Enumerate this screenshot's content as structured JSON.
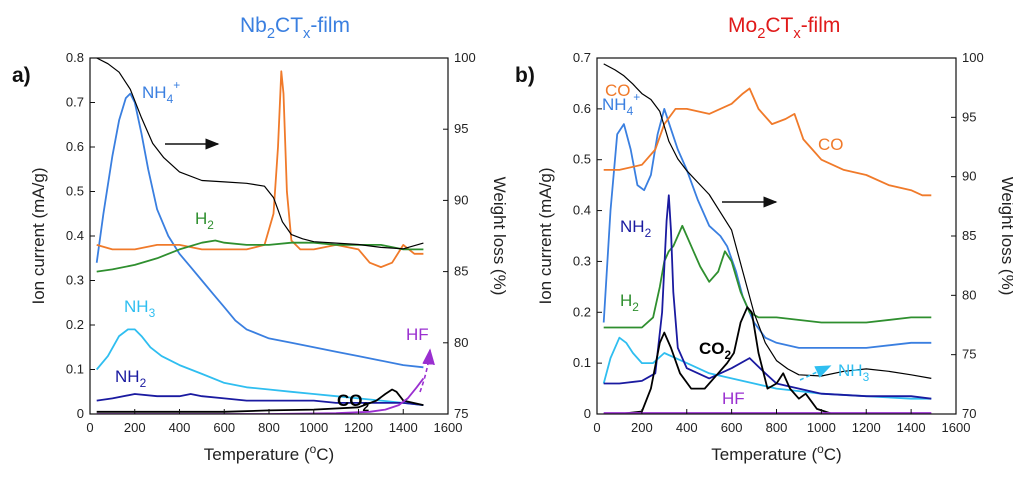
{
  "chart_data": [
    {
      "type": "line",
      "panel_label": "a)",
      "title": "Nb2CTx-film",
      "title_color": "#3a7fe0",
      "xlabel": "Temperature (oC)",
      "ylabel": "Ion current (mA/g)",
      "y2label": "Weight loss (%)",
      "xlim": [
        0,
        1600
      ],
      "ylim": [
        0,
        0.8
      ],
      "y2lim": [
        75,
        100
      ],
      "xticks": [
        0,
        200,
        400,
        600,
        800,
        1000,
        1200,
        1400,
        1600
      ],
      "yticks": [
        0,
        0.1,
        0.2,
        0.3,
        0.4,
        0.5,
        0.6,
        0.7,
        0.8
      ],
      "y2ticks": [
        75,
        80,
        85,
        90,
        95,
        100
      ],
      "series": [
        {
          "name": "NH4+",
          "color": "#3a7fe0",
          "axis": "left",
          "x": [
            30,
            60,
            100,
            130,
            160,
            180,
            200,
            230,
            260,
            300,
            350,
            400,
            450,
            500,
            550,
            600,
            650,
            700,
            800,
            900,
            1000,
            1100,
            1200,
            1300,
            1400,
            1490
          ],
          "y": [
            0.34,
            0.45,
            0.58,
            0.66,
            0.71,
            0.72,
            0.7,
            0.63,
            0.55,
            0.46,
            0.4,
            0.36,
            0.33,
            0.3,
            0.27,
            0.24,
            0.21,
            0.19,
            0.17,
            0.16,
            0.15,
            0.14,
            0.13,
            0.12,
            0.11,
            0.105
          ]
        },
        {
          "name": "CO",
          "color": "#f07a2a",
          "axis": "left",
          "x": [
            30,
            100,
            200,
            300,
            400,
            500,
            600,
            700,
            780,
            820,
            840,
            855,
            865,
            880,
            900,
            940,
            1000,
            1100,
            1200,
            1250,
            1300,
            1350,
            1400,
            1450,
            1490
          ],
          "y": [
            0.38,
            0.37,
            0.37,
            0.38,
            0.38,
            0.37,
            0.37,
            0.37,
            0.38,
            0.45,
            0.6,
            0.77,
            0.72,
            0.5,
            0.39,
            0.37,
            0.37,
            0.38,
            0.37,
            0.34,
            0.33,
            0.34,
            0.38,
            0.36,
            0.36
          ]
        },
        {
          "name": "H2",
          "color": "#2f8f2f",
          "axis": "left",
          "x": [
            30,
            100,
            200,
            300,
            400,
            500,
            560,
            600,
            700,
            800,
            900,
            1000,
            1100,
            1200,
            1300,
            1400,
            1490
          ],
          "y": [
            0.32,
            0.325,
            0.335,
            0.35,
            0.37,
            0.385,
            0.39,
            0.385,
            0.38,
            0.38,
            0.385,
            0.385,
            0.38,
            0.38,
            0.38,
            0.37,
            0.37
          ]
        },
        {
          "name": "NH3",
          "color": "#2fbef0",
          "axis": "left",
          "x": [
            30,
            80,
            130,
            170,
            200,
            230,
            270,
            320,
            400,
            500,
            600,
            700,
            800,
            900,
            1000,
            1100,
            1200,
            1300,
            1400,
            1490
          ],
          "y": [
            0.1,
            0.13,
            0.175,
            0.19,
            0.19,
            0.175,
            0.15,
            0.13,
            0.11,
            0.09,
            0.07,
            0.06,
            0.055,
            0.05,
            0.045,
            0.04,
            0.035,
            0.03,
            0.025,
            0.02
          ]
        },
        {
          "name": "NH2",
          "color": "#1a1aa0",
          "axis": "left",
          "x": [
            30,
            100,
            200,
            300,
            400,
            450,
            500,
            600,
            700,
            800,
            900,
            1000,
            1100,
            1200,
            1300,
            1400,
            1490
          ],
          "y": [
            0.03,
            0.035,
            0.045,
            0.04,
            0.04,
            0.045,
            0.04,
            0.035,
            0.03,
            0.03,
            0.03,
            0.03,
            0.025,
            0.025,
            0.025,
            0.025,
            0.02
          ]
        },
        {
          "name": "CO2",
          "color": "#000000",
          "axis": "left",
          "x": [
            30,
            200,
            400,
            600,
            800,
            1000,
            1200,
            1280,
            1320,
            1350,
            1370,
            1400,
            1490
          ],
          "y": [
            0.005,
            0.005,
            0.005,
            0.005,
            0.008,
            0.01,
            0.015,
            0.03,
            0.045,
            0.055,
            0.05,
            0.03,
            0.02
          ]
        },
        {
          "name": "HF",
          "color": "#9a2fd0",
          "axis": "left",
          "x": [
            30,
            400,
            800,
            1100,
            1250,
            1320,
            1380,
            1420,
            1460,
            1490
          ],
          "y": [
            0.0,
            0.0,
            0.0,
            0.002,
            0.005,
            0.01,
            0.02,
            0.035,
            0.06,
            0.08
          ]
        },
        {
          "name": "Weight loss",
          "color": "#000000",
          "axis": "right",
          "x": [
            30,
            80,
            130,
            180,
            230,
            280,
            330,
            400,
            500,
            600,
            700,
            780,
            820,
            860,
            900,
            950,
            1000,
            1100,
            1200,
            1300,
            1400,
            1490
          ],
          "y": [
            100,
            99.6,
            99.0,
            97.8,
            95.8,
            94.0,
            93.0,
            92.0,
            91.4,
            91.3,
            91.2,
            91.0,
            90.2,
            88.5,
            87.6,
            87.3,
            87.1,
            87.0,
            86.9,
            86.7,
            86.6,
            87.0
          ]
        }
      ],
      "labels": [
        {
          "text": "NH4+",
          "color": "#3a7fe0"
        },
        {
          "text": "CO",
          "color": "#f07a2a"
        },
        {
          "text": "H2",
          "color": "#2f8f2f"
        },
        {
          "text": "NH3",
          "color": "#2fbef0"
        },
        {
          "text": "NH2",
          "color": "#1a1aa0"
        },
        {
          "text": "CO2",
          "color": "#000000"
        },
        {
          "text": "HF",
          "color": "#9a2fd0"
        }
      ]
    },
    {
      "type": "line",
      "panel_label": "b)",
      "title": "Mo2CTx-film",
      "title_color": "#e01a1a",
      "xlabel": "Temperature (oC)",
      "ylabel": "Ion current (mA/g)",
      "y2label": "Weight loss (%)",
      "xlim": [
        0,
        1600
      ],
      "ylim": [
        0,
        0.7
      ],
      "y2lim": [
        70,
        100
      ],
      "xticks": [
        0,
        200,
        400,
        600,
        800,
        1000,
        1200,
        1400,
        1600
      ],
      "yticks": [
        0,
        0.1,
        0.2,
        0.3,
        0.4,
        0.5,
        0.6,
        0.7
      ],
      "y2ticks": [
        70,
        75,
        80,
        85,
        90,
        95,
        100
      ],
      "series": [
        {
          "name": "NH4+",
          "color": "#3a7fe0",
          "axis": "left",
          "x": [
            30,
            60,
            90,
            120,
            150,
            180,
            210,
            240,
            270,
            300,
            330,
            360,
            400,
            450,
            500,
            550,
            580,
            620,
            650,
            700,
            750,
            800,
            900,
            1000,
            1200,
            1400,
            1490
          ],
          "y": [
            0.18,
            0.4,
            0.55,
            0.57,
            0.52,
            0.45,
            0.44,
            0.47,
            0.55,
            0.6,
            0.56,
            0.52,
            0.48,
            0.42,
            0.37,
            0.35,
            0.33,
            0.28,
            0.23,
            0.18,
            0.15,
            0.14,
            0.13,
            0.13,
            0.13,
            0.14,
            0.14
          ]
        },
        {
          "name": "CO",
          "color": "#f07a2a",
          "axis": "left",
          "x": [
            30,
            100,
            200,
            260,
            300,
            350,
            400,
            500,
            600,
            650,
            680,
            720,
            780,
            840,
            880,
            920,
            960,
            1000,
            1100,
            1200,
            1300,
            1400,
            1450,
            1490
          ],
          "y": [
            0.48,
            0.48,
            0.49,
            0.52,
            0.57,
            0.6,
            0.6,
            0.59,
            0.61,
            0.63,
            0.64,
            0.6,
            0.57,
            0.58,
            0.59,
            0.54,
            0.52,
            0.5,
            0.48,
            0.47,
            0.45,
            0.44,
            0.43,
            0.43
          ]
        },
        {
          "name": "H2",
          "color": "#2f8f2f",
          "axis": "left",
          "x": [
            30,
            100,
            200,
            250,
            280,
            300,
            320,
            340,
            360,
            380,
            400,
            430,
            460,
            500,
            540,
            570,
            600,
            640,
            680,
            720,
            800,
            1000,
            1200,
            1400,
            1490
          ],
          "y": [
            0.17,
            0.17,
            0.17,
            0.19,
            0.25,
            0.3,
            0.32,
            0.33,
            0.35,
            0.37,
            0.35,
            0.32,
            0.29,
            0.26,
            0.28,
            0.32,
            0.3,
            0.24,
            0.2,
            0.19,
            0.19,
            0.18,
            0.18,
            0.19,
            0.19
          ]
        },
        {
          "name": "NH3",
          "color": "#2fbef0",
          "axis": "left",
          "x": [
            30,
            60,
            100,
            130,
            160,
            200,
            250,
            300,
            350,
            400,
            450,
            500,
            600,
            700,
            800,
            900,
            1000,
            1200,
            1400,
            1490
          ],
          "y": [
            0.06,
            0.11,
            0.15,
            0.14,
            0.12,
            0.1,
            0.1,
            0.12,
            0.11,
            0.1,
            0.09,
            0.08,
            0.07,
            0.06,
            0.05,
            0.045,
            0.04,
            0.035,
            0.03,
            0.03
          ]
        },
        {
          "name": "NH2",
          "color": "#1a1aa0",
          "axis": "left",
          "x": [
            30,
            100,
            200,
            260,
            290,
            310,
            320,
            330,
            340,
            360,
            400,
            450,
            500,
            550,
            600,
            680,
            750,
            800,
            900,
            1000,
            1200,
            1400,
            1490
          ],
          "y": [
            0.06,
            0.06,
            0.065,
            0.08,
            0.2,
            0.38,
            0.43,
            0.36,
            0.24,
            0.13,
            0.09,
            0.08,
            0.07,
            0.08,
            0.09,
            0.11,
            0.08,
            0.06,
            0.05,
            0.04,
            0.035,
            0.035,
            0.03
          ]
        },
        {
          "name": "CO2",
          "color": "#000000",
          "axis": "left",
          "x": [
            30,
            100,
            200,
            240,
            280,
            300,
            330,
            370,
            420,
            480,
            540,
            580,
            610,
            640,
            670,
            690,
            720,
            760,
            800,
            830,
            860,
            900,
            930,
            980,
            1050,
            1200,
            1400,
            1490
          ],
          "y": [
            0.0,
            0.0,
            0.005,
            0.05,
            0.14,
            0.16,
            0.13,
            0.08,
            0.05,
            0.05,
            0.08,
            0.1,
            0.12,
            0.18,
            0.21,
            0.2,
            0.12,
            0.05,
            0.06,
            0.08,
            0.05,
            0.03,
            0.04,
            0.01,
            0.0,
            0.0,
            0.0,
            0.0
          ]
        },
        {
          "name": "HF",
          "color": "#9a2fd0",
          "axis": "left",
          "x": [
            30,
            300,
            600,
            900,
            1200,
            1490
          ],
          "y": [
            0.002,
            0.002,
            0.002,
            0.002,
            0.002,
            0.002
          ]
        },
        {
          "name": "Weight loss",
          "color": "#000000",
          "axis": "right",
          "x": [
            30,
            80,
            120,
            160,
            200,
            240,
            280,
            320,
            360,
            400,
            450,
            500,
            550,
            600,
            650,
            700,
            750,
            800,
            850,
            900,
            1000,
            1100,
            1200,
            1300,
            1400,
            1490
          ],
          "y": [
            99.5,
            99.0,
            98.5,
            97.8,
            97.0,
            96.5,
            95.5,
            93.0,
            91.5,
            90.5,
            89.5,
            88.5,
            87.0,
            85.5,
            82.0,
            78.5,
            76.0,
            74.5,
            73.8,
            73.3,
            73.2,
            73.6,
            73.8,
            73.6,
            73.3,
            73.0
          ]
        }
      ],
      "labels": [
        {
          "text": "NH4+",
          "color": "#3a7fe0"
        },
        {
          "text": "CO",
          "color": "#f07a2a"
        },
        {
          "text": "NH2",
          "color": "#1a1aa0"
        },
        {
          "text": "H2",
          "color": "#2f8f2f"
        },
        {
          "text": "CO2",
          "color": "#000000"
        },
        {
          "text": "NH3",
          "color": "#2fbef0"
        },
        {
          "text": "HF",
          "color": "#9a2fd0"
        }
      ]
    }
  ]
}
